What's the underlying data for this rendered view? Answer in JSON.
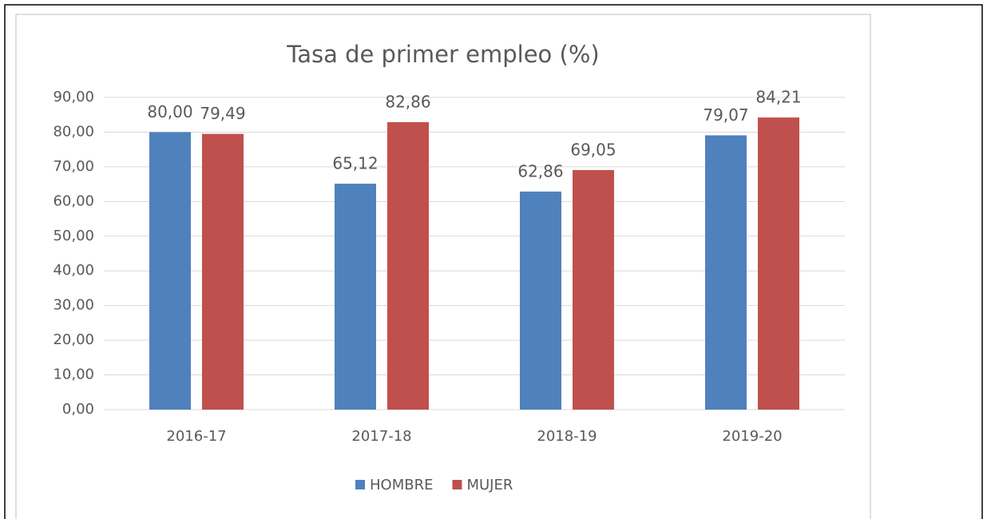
{
  "chart_data": {
    "type": "bar",
    "title": "Tasa de primer empleo (%)",
    "categories": [
      "2016-17",
      "2017-18",
      "2018-19",
      "2019-20"
    ],
    "series": [
      {
        "name": "HOMBRE",
        "color": "#4f81bd",
        "values": [
          80.0,
          65.12,
          62.86,
          79.07
        ],
        "value_labels": [
          "80,00",
          "65,12",
          "62,86",
          "79,07"
        ]
      },
      {
        "name": "MUJER",
        "color": "#c0504d",
        "values": [
          79.49,
          82.86,
          69.05,
          84.21
        ],
        "value_labels": [
          "79,49",
          "82,86",
          "69,05",
          "84,21"
        ]
      }
    ],
    "ylim": [
      0,
      90
    ],
    "yticks": [
      {
        "value": 0,
        "label": "0,00"
      },
      {
        "value": 10,
        "label": "10,00"
      },
      {
        "value": 20,
        "label": "20,00"
      },
      {
        "value": 30,
        "label": "30,00"
      },
      {
        "value": 40,
        "label": "40,00"
      },
      {
        "value": 50,
        "label": "50,00"
      },
      {
        "value": 60,
        "label": "60,00"
      },
      {
        "value": 70,
        "label": "70,00"
      },
      {
        "value": 80,
        "label": "80,00"
      },
      {
        "value": 90,
        "label": "90,00"
      }
    ],
    "grid": true,
    "legend": "bottom"
  }
}
